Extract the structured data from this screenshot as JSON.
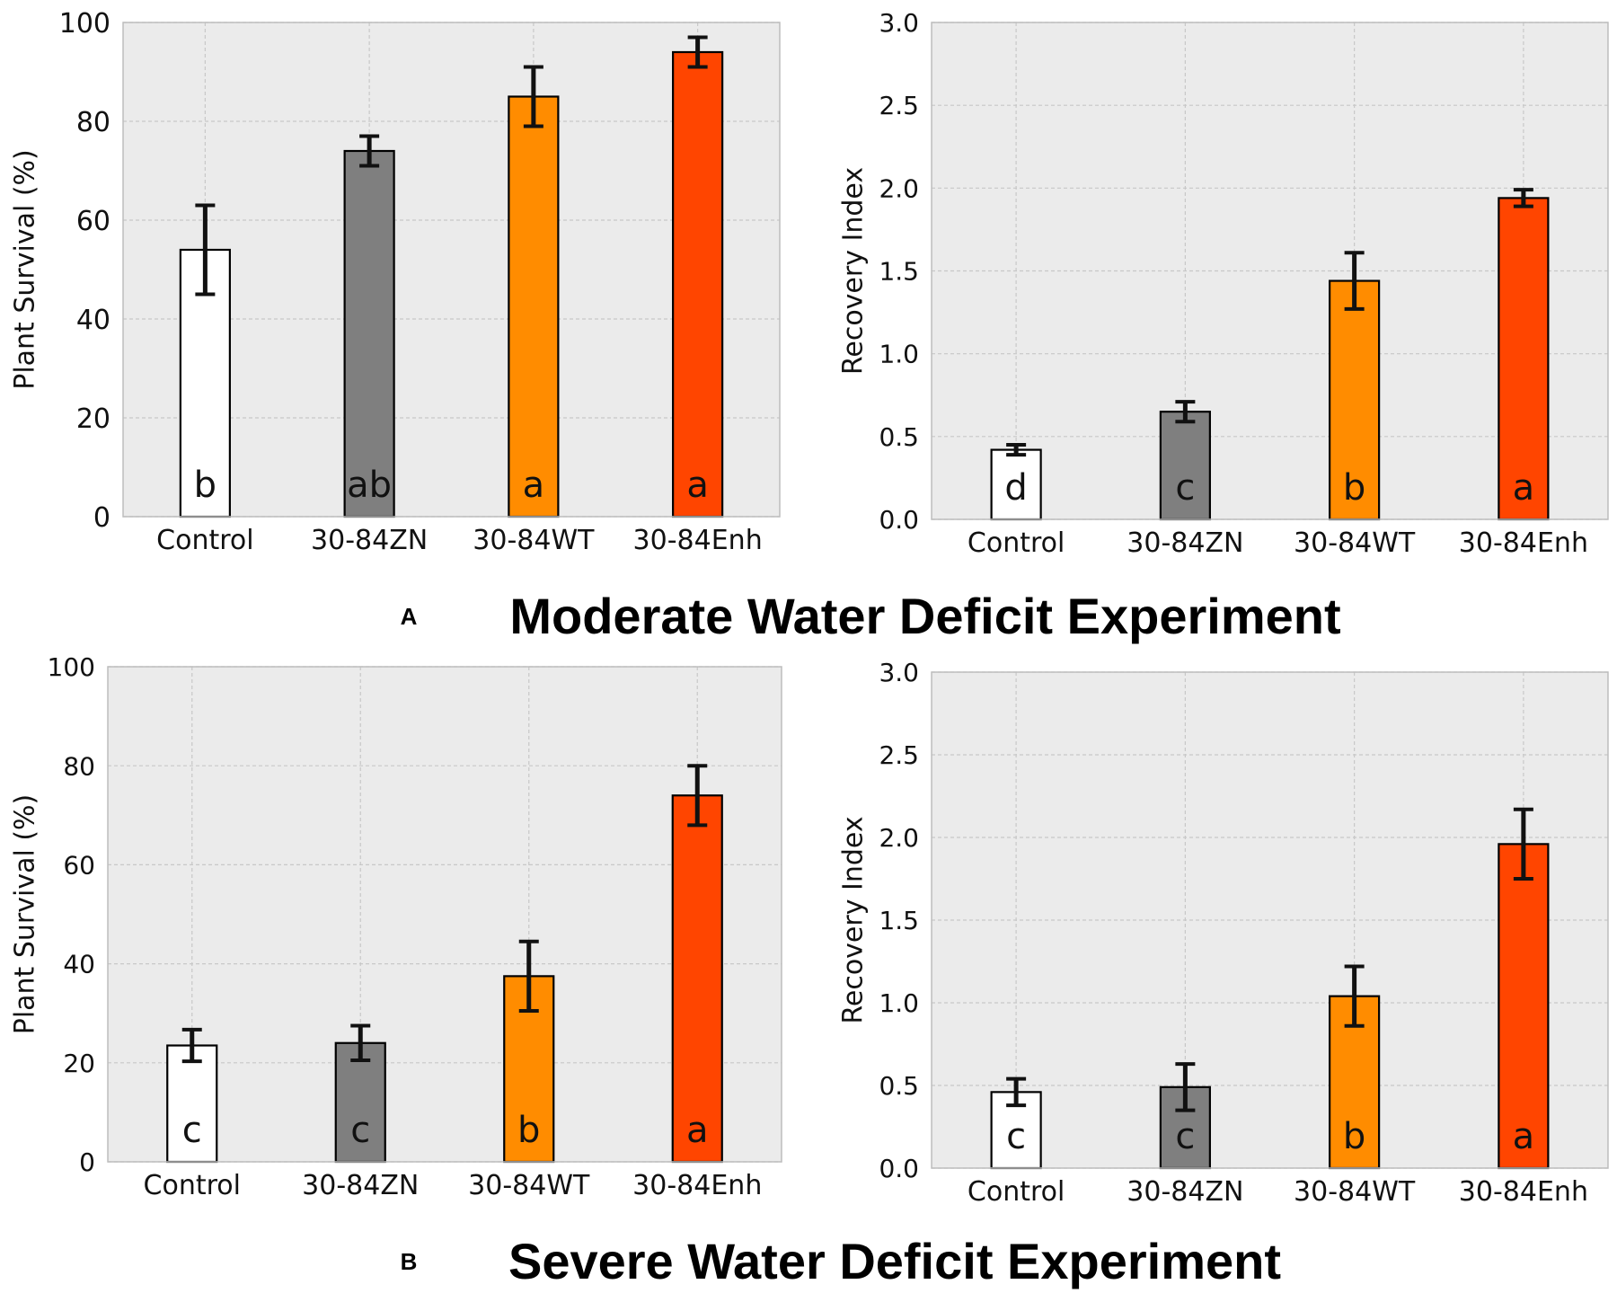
{
  "figure": {
    "panel_a": {
      "letter": "A",
      "title": "Moderate Water Deficit Experiment"
    },
    "panel_b": {
      "letter": "B",
      "title": "Severe Water Deficit Experiment"
    }
  },
  "colors": {
    "Control": "#ffffff",
    "30-84ZN": "#7f7f7f",
    "30-84WT": "#ff8c00",
    "30-84Enh": "#ff4500",
    "plot_bg": "#ebebeb",
    "grid": "#c8c8c8",
    "edge": "#000000",
    "errorbar": "#111111"
  },
  "chart_data": [
    {
      "id": "a-survival",
      "type": "bar",
      "categories": [
        "Control",
        "30-84ZN",
        "30-84WT",
        "30-84Enh"
      ],
      "values": [
        54,
        74,
        85,
        94
      ],
      "errors": [
        9,
        3,
        6,
        3
      ],
      "letters": [
        "b",
        "ab",
        "a",
        "a"
      ],
      "ylabel": "Plant Survival (%)",
      "ylim": [
        0,
        100
      ],
      "yticks": [
        "0",
        "20",
        "40",
        "60",
        "80",
        "100"
      ],
      "grid": true
    },
    {
      "id": "a-recovery",
      "type": "bar",
      "categories": [
        "Control",
        "30-84ZN",
        "30-84WT",
        "30-84Enh"
      ],
      "values": [
        0.42,
        0.65,
        1.44,
        1.94
      ],
      "errors": [
        0.03,
        0.06,
        0.17,
        0.05
      ],
      "letters": [
        "d",
        "c",
        "b",
        "a"
      ],
      "ylabel": "Recovery Index",
      "ylim": [
        0,
        3
      ],
      "yticks": [
        "0.0",
        "0.5",
        "1.0",
        "1.5",
        "2.0",
        "2.5",
        "3.0"
      ],
      "grid": true
    },
    {
      "id": "b-survival",
      "type": "bar",
      "categories": [
        "Control",
        "30-84ZN",
        "30-84WT",
        "30-84Enh"
      ],
      "values": [
        23.5,
        24,
        37.5,
        74
      ],
      "errors": [
        3.2,
        3.5,
        7,
        6
      ],
      "letters": [
        "c",
        "c",
        "b",
        "a"
      ],
      "ylabel": "Plant Survival (%)",
      "ylim": [
        0,
        100
      ],
      "yticks": [
        "0",
        "20",
        "40",
        "60",
        "80",
        "100"
      ],
      "grid": true
    },
    {
      "id": "b-recovery",
      "type": "bar",
      "categories": [
        "Control",
        "30-84ZN",
        "30-84WT",
        "30-84Enh"
      ],
      "values": [
        0.46,
        0.49,
        1.04,
        1.96
      ],
      "errors": [
        0.08,
        0.14,
        0.18,
        0.21
      ],
      "letters": [
        "c",
        "c",
        "b",
        "a"
      ],
      "ylabel": "Recovery Index",
      "ylim": [
        0,
        3
      ],
      "yticks": [
        "0.0",
        "0.5",
        "1.0",
        "1.5",
        "2.0",
        "2.5",
        "3.0"
      ],
      "grid": true
    }
  ]
}
